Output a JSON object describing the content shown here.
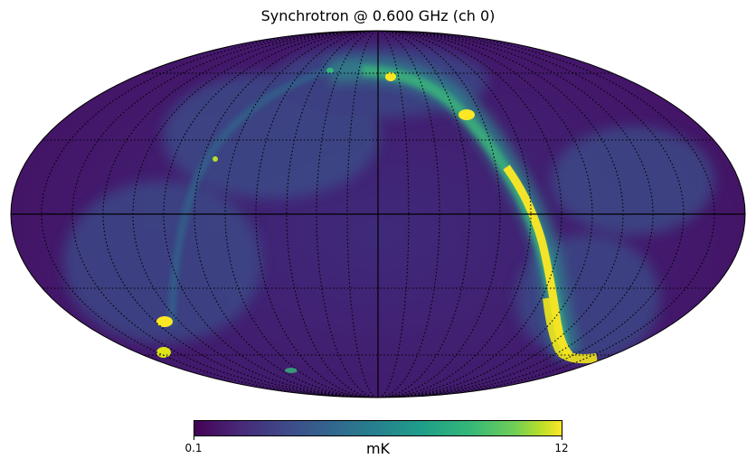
{
  "title": "Synchrotron @ 0.600 GHz (ch 0)",
  "projection": "mollweide",
  "graticule": true,
  "colormap": "viridis",
  "colorbar": {
    "min_label": "0.1",
    "max_label": "12",
    "unit": "mK"
  },
  "colors": {
    "background_sky": "#45166b",
    "ring_mid": "#31688e",
    "ring_bright": "#fde725",
    "graticule": "#000000"
  }
}
